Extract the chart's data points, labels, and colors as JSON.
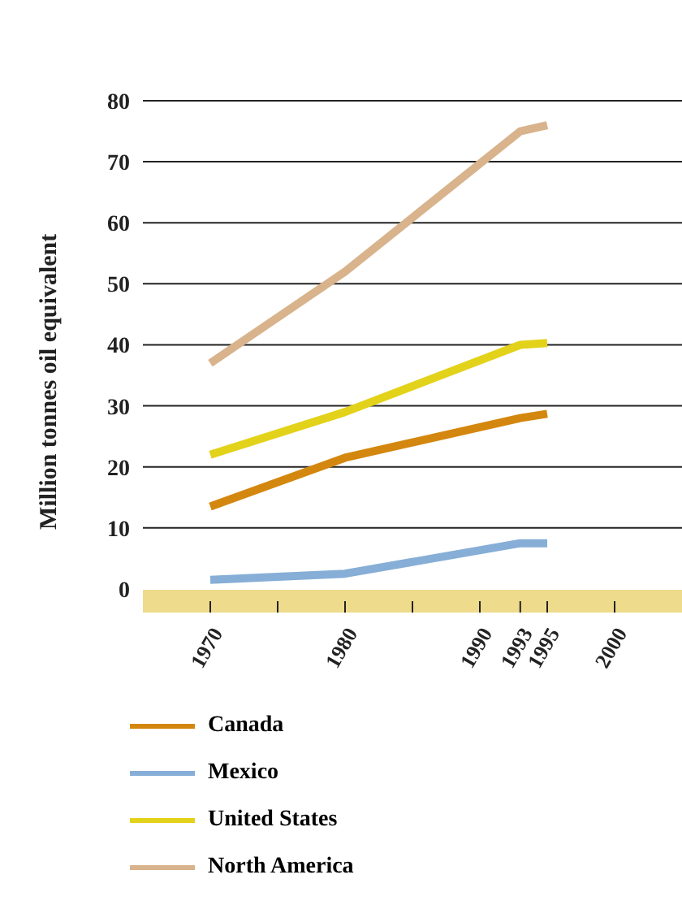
{
  "chart_data": {
    "type": "line",
    "ylabel": "Million tonnes oil equivalent",
    "x": [
      1970,
      1980,
      1993,
      1995
    ],
    "series": [
      {
        "name": "Canada",
        "color": "#d4870f",
        "values": [
          13.5,
          21.5,
          28,
          28.7
        ]
      },
      {
        "name": "Mexico",
        "color": "#86aed6",
        "values": [
          1.5,
          2.5,
          7.5,
          7.5
        ]
      },
      {
        "name": "United States",
        "color": "#e3d21a",
        "values": [
          22,
          29,
          40,
          40.3
        ]
      },
      {
        "name": "North America",
        "color": "#d8b38c",
        "values": [
          37,
          52,
          75,
          76
        ]
      }
    ],
    "xlim": [
      1965,
      2005
    ],
    "xticks": [
      1970,
      {
        "value": 1975,
        "label": null
      },
      1980,
      {
        "value": 1985,
        "label": null
      },
      1990,
      1993,
      1995,
      2000
    ],
    "ylim": [
      -2,
      80
    ],
    "yticks": [
      0,
      10,
      20,
      30,
      40,
      50,
      60,
      70,
      80
    ],
    "grid": "y",
    "legend": "bottom",
    "marker": "none",
    "line_style": "solid"
  }
}
